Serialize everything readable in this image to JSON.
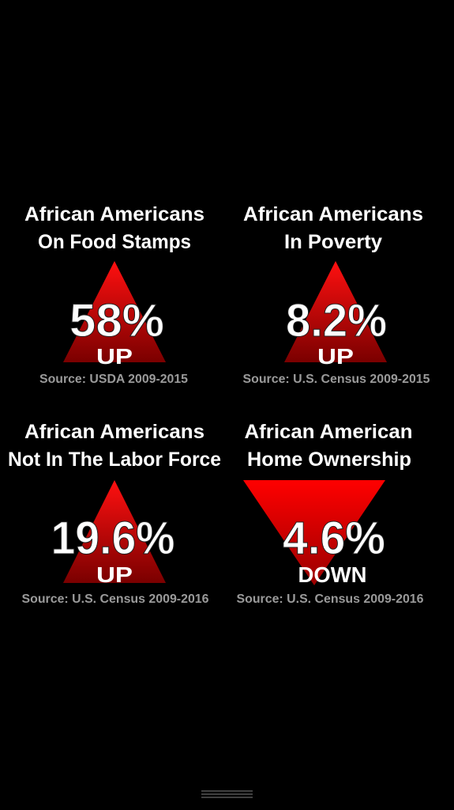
{
  "panels": [
    {
      "title": [
        "African Americans",
        "On Food Stamps"
      ],
      "value": "58%",
      "direction": "UP",
      "source": "Source: USDA 2009-2015"
    },
    {
      "title": [
        "African Americans",
        "In Poverty"
      ],
      "value": "8.2%",
      "direction": "UP",
      "source": "Source: U.S. Census 2009-2015"
    },
    {
      "title": [
        "African Americans",
        "Not In The Labor Force"
      ],
      "value": "19.6%",
      "direction": "UP",
      "source": "Source: U.S. Census 2009-2016"
    },
    {
      "title": [
        "African American",
        "Home Ownership"
      ],
      "value": "4.6%",
      "direction": "DOWN",
      "source": "Source: U.S. Census 2009-2016"
    }
  ]
}
